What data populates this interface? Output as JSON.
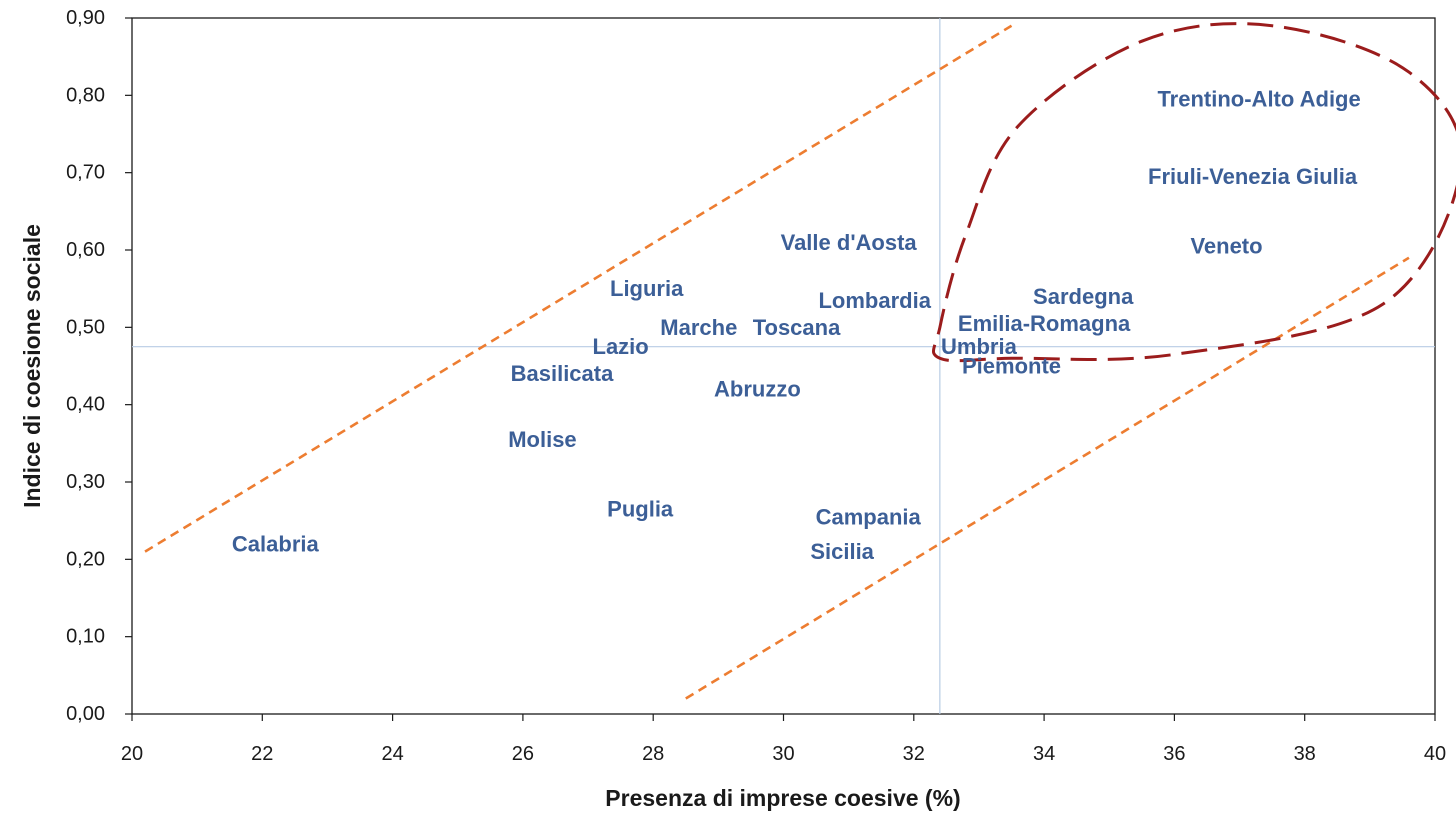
{
  "chart_data": {
    "type": "scatter",
    "title": "",
    "xlabel": "Presenza di imprese coesive (%)",
    "ylabel": "Indice di coesione sociale",
    "xlim": [
      20,
      40
    ],
    "ylim": [
      0,
      0.9
    ],
    "x_ticks": [
      "20",
      "22",
      "24",
      "26",
      "28",
      "30",
      "32",
      "34",
      "36",
      "38",
      "40"
    ],
    "y_ticks": [
      "0,00",
      "0,10",
      "0,20",
      "0,30",
      "0,40",
      "0,50",
      "0,60",
      "0,70",
      "0,80",
      "0,90"
    ],
    "grid": false,
    "reference_lines": {
      "x_mean": 32.4,
      "y_mean": 0.475,
      "color": "#b8cce4"
    },
    "trend_band": {
      "color": "#ed7d31",
      "upper": [
        [
          20.2,
          0.21
        ],
        [
          33.5,
          0.89
        ]
      ],
      "lower": [
        [
          28.5,
          0.02
        ],
        [
          39.6,
          0.59
        ]
      ]
    },
    "highlight": {
      "color": "#9b1c1c",
      "style": "dashed"
    },
    "label_color": "#3c5f97",
    "points": [
      {
        "label": "Calabria",
        "x": 22.2,
        "y": 0.22
      },
      {
        "label": "Molise",
        "x": 26.3,
        "y": 0.355
      },
      {
        "label": "Basilicata",
        "x": 26.6,
        "y": 0.44
      },
      {
        "label": "Puglia",
        "x": 27.8,
        "y": 0.265
      },
      {
        "label": "Lazio",
        "x": 27.5,
        "y": 0.475
      },
      {
        "label": "Liguria",
        "x": 27.9,
        "y": 0.55
      },
      {
        "label": "Marche",
        "x": 28.7,
        "y": 0.5
      },
      {
        "label": "Toscana",
        "x": 30.2,
        "y": 0.5
      },
      {
        "label": "Abruzzo",
        "x": 29.6,
        "y": 0.42
      },
      {
        "label": "Valle d'Aosta",
        "x": 31.0,
        "y": 0.61
      },
      {
        "label": "Lombardia",
        "x": 31.4,
        "y": 0.535
      },
      {
        "label": "Campania",
        "x": 31.3,
        "y": 0.255
      },
      {
        "label": "Sicilia",
        "x": 30.9,
        "y": 0.21
      },
      {
        "label": "Emilia-Romagna",
        "x": 34.0,
        "y": 0.505
      },
      {
        "label": "Umbria",
        "x": 33.0,
        "y": 0.475
      },
      {
        "label": "Piemonte",
        "x": 33.5,
        "y": 0.45
      },
      {
        "label": "Sardegna",
        "x": 34.6,
        "y": 0.54
      },
      {
        "label": "Veneto",
        "x": 36.8,
        "y": 0.605
      },
      {
        "label": "Friuli-Venezia Giulia",
        "x": 37.2,
        "y": 0.695
      },
      {
        "label": "Trentino-Alto Adige",
        "x": 37.3,
        "y": 0.795
      }
    ]
  }
}
